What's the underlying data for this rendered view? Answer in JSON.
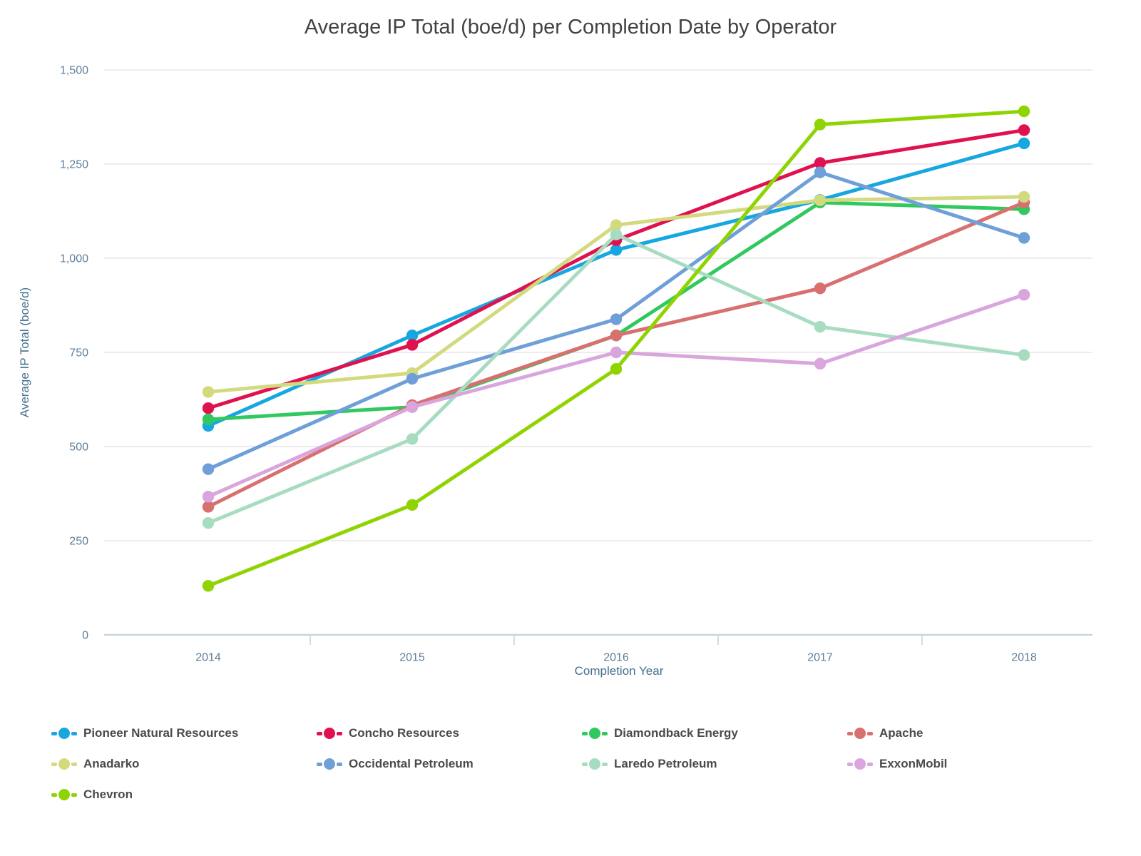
{
  "chart_data": {
    "type": "line",
    "title": "Average IP Total (boe/d) per Completion Date by Operator",
    "xlabel": "Completion Year",
    "ylabel": "Average IP Total (boe/d)",
    "categories": [
      "2014",
      "2015",
      "2016",
      "2017",
      "2018"
    ],
    "ylim": [
      0,
      1500
    ],
    "ytick_step": 250,
    "ytick_labels": [
      "0",
      "250",
      "500",
      "750",
      "1,000",
      "1,250",
      "1,500"
    ],
    "grid": "horizontal",
    "legend_position": "bottom",
    "marker_style": "dash-dot-dash",
    "series": [
      {
        "name": "Pioneer Natural Resources",
        "color": "#17a7e0",
        "values": [
          555,
          795,
          1022,
          1155,
          1305
        ]
      },
      {
        "name": "Concho Resources",
        "color": "#e0114f",
        "values": [
          602,
          770,
          1048,
          1253,
          1340
        ]
      },
      {
        "name": "Diamondback Energy",
        "color": "#31c95f",
        "values": [
          572,
          605,
          795,
          1148,
          1130
        ]
      },
      {
        "name": "Apache",
        "color": "#d97070",
        "values": [
          340,
          610,
          795,
          920,
          1148
        ]
      },
      {
        "name": "Anadarko",
        "color": "#d3da7e",
        "values": [
          645,
          695,
          1088,
          1154,
          1163
        ]
      },
      {
        "name": "Occidental Petroleum",
        "color": "#6f9fd8",
        "values": [
          440,
          680,
          838,
          1228,
          1054
        ]
      },
      {
        "name": "Laredo Petroleum",
        "color": "#a8dcc1",
        "values": [
          297,
          520,
          1063,
          818,
          743
        ]
      },
      {
        "name": "ExxonMobil",
        "color": "#d9a5dd",
        "values": [
          367,
          605,
          750,
          720,
          903
        ]
      },
      {
        "name": "Chevron",
        "color": "#8fd402",
        "values": [
          130,
          345,
          706,
          1355,
          1390
        ]
      }
    ]
  },
  "colors": {
    "title_text": "#424242",
    "tick_text": "#5f7e99",
    "axis_title_text": "#44708e",
    "gridline": "#e7e7e7",
    "axis_line": "#c9d6de",
    "category_tick": "#cfcfcf",
    "legend_text": "#4a4a4a",
    "background": "#ffffff"
  }
}
